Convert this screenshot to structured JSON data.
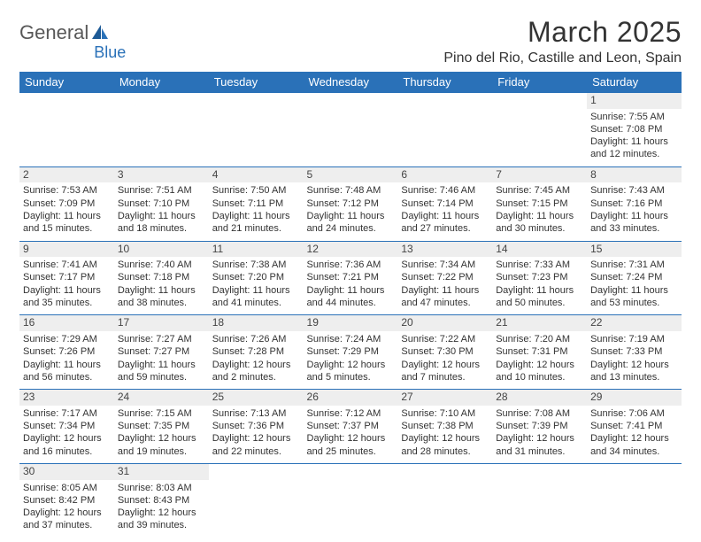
{
  "logo": {
    "text1": "General",
    "text2": "Blue"
  },
  "title": "March 2025",
  "location": "Pino del Rio, Castille and Leon, Spain",
  "day_headers": [
    "Sunday",
    "Monday",
    "Tuesday",
    "Wednesday",
    "Thursday",
    "Friday",
    "Saturday"
  ],
  "colors": {
    "header_bg": "#2a71b8",
    "header_fg": "#ffffff",
    "daynum_bg": "#eeeeee",
    "border": "#2a71b8",
    "text": "#333333",
    "logo_gray": "#585858",
    "logo_blue": "#2a71b8"
  },
  "weeks": [
    [
      null,
      null,
      null,
      null,
      null,
      null,
      {
        "n": "1",
        "sr": "Sunrise: 7:55 AM",
        "ss": "Sunset: 7:08 PM",
        "d1": "Daylight: 11 hours",
        "d2": "and 12 minutes."
      }
    ],
    [
      {
        "n": "2",
        "sr": "Sunrise: 7:53 AM",
        "ss": "Sunset: 7:09 PM",
        "d1": "Daylight: 11 hours",
        "d2": "and 15 minutes."
      },
      {
        "n": "3",
        "sr": "Sunrise: 7:51 AM",
        "ss": "Sunset: 7:10 PM",
        "d1": "Daylight: 11 hours",
        "d2": "and 18 minutes."
      },
      {
        "n": "4",
        "sr": "Sunrise: 7:50 AM",
        "ss": "Sunset: 7:11 PM",
        "d1": "Daylight: 11 hours",
        "d2": "and 21 minutes."
      },
      {
        "n": "5",
        "sr": "Sunrise: 7:48 AM",
        "ss": "Sunset: 7:12 PM",
        "d1": "Daylight: 11 hours",
        "d2": "and 24 minutes."
      },
      {
        "n": "6",
        "sr": "Sunrise: 7:46 AM",
        "ss": "Sunset: 7:14 PM",
        "d1": "Daylight: 11 hours",
        "d2": "and 27 minutes."
      },
      {
        "n": "7",
        "sr": "Sunrise: 7:45 AM",
        "ss": "Sunset: 7:15 PM",
        "d1": "Daylight: 11 hours",
        "d2": "and 30 minutes."
      },
      {
        "n": "8",
        "sr": "Sunrise: 7:43 AM",
        "ss": "Sunset: 7:16 PM",
        "d1": "Daylight: 11 hours",
        "d2": "and 33 minutes."
      }
    ],
    [
      {
        "n": "9",
        "sr": "Sunrise: 7:41 AM",
        "ss": "Sunset: 7:17 PM",
        "d1": "Daylight: 11 hours",
        "d2": "and 35 minutes."
      },
      {
        "n": "10",
        "sr": "Sunrise: 7:40 AM",
        "ss": "Sunset: 7:18 PM",
        "d1": "Daylight: 11 hours",
        "d2": "and 38 minutes."
      },
      {
        "n": "11",
        "sr": "Sunrise: 7:38 AM",
        "ss": "Sunset: 7:20 PM",
        "d1": "Daylight: 11 hours",
        "d2": "and 41 minutes."
      },
      {
        "n": "12",
        "sr": "Sunrise: 7:36 AM",
        "ss": "Sunset: 7:21 PM",
        "d1": "Daylight: 11 hours",
        "d2": "and 44 minutes."
      },
      {
        "n": "13",
        "sr": "Sunrise: 7:34 AM",
        "ss": "Sunset: 7:22 PM",
        "d1": "Daylight: 11 hours",
        "d2": "and 47 minutes."
      },
      {
        "n": "14",
        "sr": "Sunrise: 7:33 AM",
        "ss": "Sunset: 7:23 PM",
        "d1": "Daylight: 11 hours",
        "d2": "and 50 minutes."
      },
      {
        "n": "15",
        "sr": "Sunrise: 7:31 AM",
        "ss": "Sunset: 7:24 PM",
        "d1": "Daylight: 11 hours",
        "d2": "and 53 minutes."
      }
    ],
    [
      {
        "n": "16",
        "sr": "Sunrise: 7:29 AM",
        "ss": "Sunset: 7:26 PM",
        "d1": "Daylight: 11 hours",
        "d2": "and 56 minutes."
      },
      {
        "n": "17",
        "sr": "Sunrise: 7:27 AM",
        "ss": "Sunset: 7:27 PM",
        "d1": "Daylight: 11 hours",
        "d2": "and 59 minutes."
      },
      {
        "n": "18",
        "sr": "Sunrise: 7:26 AM",
        "ss": "Sunset: 7:28 PM",
        "d1": "Daylight: 12 hours",
        "d2": "and 2 minutes."
      },
      {
        "n": "19",
        "sr": "Sunrise: 7:24 AM",
        "ss": "Sunset: 7:29 PM",
        "d1": "Daylight: 12 hours",
        "d2": "and 5 minutes."
      },
      {
        "n": "20",
        "sr": "Sunrise: 7:22 AM",
        "ss": "Sunset: 7:30 PM",
        "d1": "Daylight: 12 hours",
        "d2": "and 7 minutes."
      },
      {
        "n": "21",
        "sr": "Sunrise: 7:20 AM",
        "ss": "Sunset: 7:31 PM",
        "d1": "Daylight: 12 hours",
        "d2": "and 10 minutes."
      },
      {
        "n": "22",
        "sr": "Sunrise: 7:19 AM",
        "ss": "Sunset: 7:33 PM",
        "d1": "Daylight: 12 hours",
        "d2": "and 13 minutes."
      }
    ],
    [
      {
        "n": "23",
        "sr": "Sunrise: 7:17 AM",
        "ss": "Sunset: 7:34 PM",
        "d1": "Daylight: 12 hours",
        "d2": "and 16 minutes."
      },
      {
        "n": "24",
        "sr": "Sunrise: 7:15 AM",
        "ss": "Sunset: 7:35 PM",
        "d1": "Daylight: 12 hours",
        "d2": "and 19 minutes."
      },
      {
        "n": "25",
        "sr": "Sunrise: 7:13 AM",
        "ss": "Sunset: 7:36 PM",
        "d1": "Daylight: 12 hours",
        "d2": "and 22 minutes."
      },
      {
        "n": "26",
        "sr": "Sunrise: 7:12 AM",
        "ss": "Sunset: 7:37 PM",
        "d1": "Daylight: 12 hours",
        "d2": "and 25 minutes."
      },
      {
        "n": "27",
        "sr": "Sunrise: 7:10 AM",
        "ss": "Sunset: 7:38 PM",
        "d1": "Daylight: 12 hours",
        "d2": "and 28 minutes."
      },
      {
        "n": "28",
        "sr": "Sunrise: 7:08 AM",
        "ss": "Sunset: 7:39 PM",
        "d1": "Daylight: 12 hours",
        "d2": "and 31 minutes."
      },
      {
        "n": "29",
        "sr": "Sunrise: 7:06 AM",
        "ss": "Sunset: 7:41 PM",
        "d1": "Daylight: 12 hours",
        "d2": "and 34 minutes."
      }
    ],
    [
      {
        "n": "30",
        "sr": "Sunrise: 8:05 AM",
        "ss": "Sunset: 8:42 PM",
        "d1": "Daylight: 12 hours",
        "d2": "and 37 minutes."
      },
      {
        "n": "31",
        "sr": "Sunrise: 8:03 AM",
        "ss": "Sunset: 8:43 PM",
        "d1": "Daylight: 12 hours",
        "d2": "and 39 minutes."
      },
      null,
      null,
      null,
      null,
      null
    ]
  ]
}
